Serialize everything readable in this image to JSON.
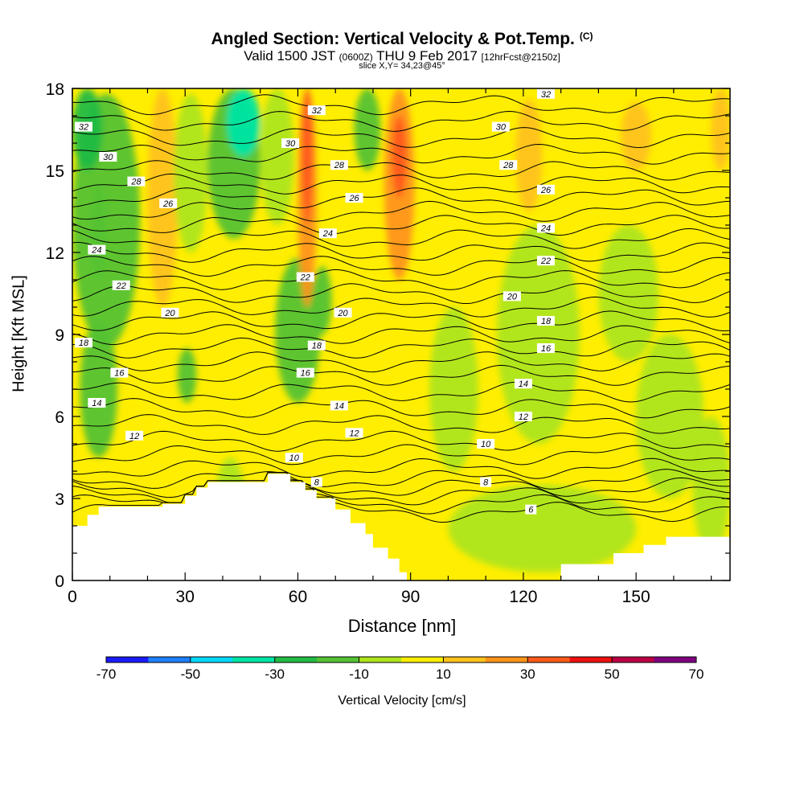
{
  "header": {
    "title": "Angled Section: Vertical Velocity & Pot.Temp.",
    "title_note": "(C)",
    "valid_a": "Valid 1500 JST",
    "valid_small": "(0600Z)",
    "valid_b": "THU 9 Feb 2017",
    "fcst": "[12hrFcst@2150z]",
    "slice": "slice X,Y= 34,23@45°"
  },
  "chart_data": {
    "type": "heatmap",
    "xlabel": "Distance [nm]",
    "ylabel": "Height [Kft MSL]",
    "xlim": [
      0,
      175
    ],
    "ylim": [
      0,
      18
    ],
    "x_ticks": [
      0,
      30,
      60,
      90,
      120,
      150
    ],
    "y_ticks": [
      0,
      3,
      6,
      9,
      12,
      15,
      18
    ],
    "colorbar": {
      "label": "Vertical Velocity [cm/s]",
      "ticks": [
        -70,
        -50,
        -30,
        -10,
        10,
        30,
        50,
        70
      ],
      "colors": [
        "#1a1aff",
        "#1e7fff",
        "#00d9ff",
        "#00e5a5",
        "#22bb44",
        "#55c233",
        "#aee51a",
        "#ffee00",
        "#ffc21a",
        "#ff941a",
        "#ff5a1a",
        "#ee1010",
        "#bb0044",
        "#800080"
      ]
    },
    "background_bin": 7,
    "velocity_cells": [
      {
        "x": [
          0,
          18
        ],
        "y": [
          8.5,
          17.8
        ],
        "bin": 5
      },
      {
        "x": [
          0,
          8
        ],
        "y": [
          15,
          18
        ],
        "bin": 4
      },
      {
        "x": [
          2,
          12
        ],
        "y": [
          4.5,
          9.5
        ],
        "bin": 5
      },
      {
        "x": [
          5,
          9
        ],
        "y": [
          11,
          14.5
        ],
        "bin": 5
      },
      {
        "x": [
          20,
          28
        ],
        "y": [
          10,
          18
        ],
        "bin": 8
      },
      {
        "x": [
          27,
          36
        ],
        "y": [
          12,
          17.8
        ],
        "bin": 6
      },
      {
        "x": [
          36,
          50
        ],
        "y": [
          12.5,
          18
        ],
        "bin": 5
      },
      {
        "x": [
          41,
          50
        ],
        "y": [
          15.5,
          18
        ],
        "bin": 3
      },
      {
        "x": [
          38,
          46
        ],
        "y": [
          1.2,
          4.5
        ],
        "bin": 6
      },
      {
        "x": [
          28,
          33
        ],
        "y": [
          6.5,
          8.5
        ],
        "bin": 5
      },
      {
        "x": [
          50,
          59
        ],
        "y": [
          13,
          18
        ],
        "bin": 6
      },
      {
        "x": [
          54,
          66
        ],
        "y": [
          6.5,
          11.8
        ],
        "bin": 5
      },
      {
        "x": [
          60,
          65
        ],
        "y": [
          10,
          18
        ],
        "bin": 9
      },
      {
        "x": [
          61,
          64
        ],
        "y": [
          13,
          18
        ],
        "bin": 10
      },
      {
        "x": [
          64,
          69
        ],
        "y": [
          9,
          11.5
        ],
        "bin": 5
      },
      {
        "x": [
          75,
          82
        ],
        "y": [
          15,
          18
        ],
        "bin": 5
      },
      {
        "x": [
          83,
          91
        ],
        "y": [
          11,
          18
        ],
        "bin": 9
      },
      {
        "x": [
          85,
          89
        ],
        "y": [
          14,
          17
        ],
        "bin": 10
      },
      {
        "x": [
          95,
          108
        ],
        "y": [
          4,
          10
        ],
        "bin": 6
      },
      {
        "x": [
          113,
          135
        ],
        "y": [
          5,
          13
        ],
        "bin": 6
      },
      {
        "x": [
          118,
          125
        ],
        "y": [
          13.5,
          17.6
        ],
        "bin": 8
      },
      {
        "x": [
          140,
          156
        ],
        "y": [
          8,
          13
        ],
        "bin": 6
      },
      {
        "x": [
          150,
          168
        ],
        "y": [
          3,
          9
        ],
        "bin": 6
      },
      {
        "x": [
          165,
          175
        ],
        "y": [
          1,
          6
        ],
        "bin": 6
      },
      {
        "x": [
          170,
          175
        ],
        "y": [
          15,
          18
        ],
        "bin": 8
      },
      {
        "x": [
          146,
          154
        ],
        "y": [
          15,
          17.5
        ],
        "bin": 8
      },
      {
        "x": [
          100,
          150
        ],
        "y": [
          0.3,
          3.5
        ],
        "bin": 6
      }
    ],
    "terrain_profile": [
      [
        0,
        2.0
      ],
      [
        4,
        2.0
      ],
      [
        4,
        2.4
      ],
      [
        7,
        2.4
      ],
      [
        7,
        2.7
      ],
      [
        24,
        2.7
      ],
      [
        24,
        2.8
      ],
      [
        30,
        2.8
      ],
      [
        30,
        3.1
      ],
      [
        33,
        3.1
      ],
      [
        33,
        3.4
      ],
      [
        36,
        3.4
      ],
      [
        36,
        3.6
      ],
      [
        52,
        3.6
      ],
      [
        52,
        3.9
      ],
      [
        58,
        3.9
      ],
      [
        58,
        3.6
      ],
      [
        62,
        3.6
      ],
      [
        62,
        3.3
      ],
      [
        65,
        3.3
      ],
      [
        65,
        3.0
      ],
      [
        70,
        3.0
      ],
      [
        70,
        2.6
      ],
      [
        74,
        2.6
      ],
      [
        74,
        2.1
      ],
      [
        78,
        2.1
      ],
      [
        78,
        1.7
      ],
      [
        80,
        1.7
      ],
      [
        80,
        1.2
      ],
      [
        84,
        1.2
      ],
      [
        84,
        0.8
      ],
      [
        87,
        0.8
      ],
      [
        87,
        0.3
      ],
      [
        89,
        0.3
      ],
      [
        89,
        0.0
      ],
      [
        130,
        0.0
      ],
      [
        130,
        0.6
      ],
      [
        144,
        0.6
      ],
      [
        144,
        1.0
      ],
      [
        152,
        1.0
      ],
      [
        152,
        1.3
      ],
      [
        158,
        1.3
      ],
      [
        158,
        1.6
      ],
      [
        175,
        1.6
      ]
    ],
    "theta_lines": [
      {
        "level": 4,
        "h": 2.5
      },
      {
        "level": 5,
        "h": 2.8
      },
      {
        "level": 6,
        "h": 3.1
      },
      {
        "level": 7,
        "h": 3.4
      },
      {
        "level": 8,
        "h": 3.7
      },
      {
        "level": 9,
        "h": 4.1
      },
      {
        "level": 10,
        "h": 4.6
      },
      {
        "level": 11,
        "h": 5.1
      },
      {
        "level": 12,
        "h": 5.7
      },
      {
        "level": 13,
        "h": 6.3
      },
      {
        "level": 14,
        "h": 6.9
      },
      {
        "level": 15,
        "h": 7.5
      },
      {
        "level": 16,
        "h": 8.0
      },
      {
        "level": 17,
        "h": 8.5
      },
      {
        "level": 18,
        "h": 9.0
      },
      {
        "level": 19,
        "h": 9.5
      },
      {
        "level": 20,
        "h": 10.0
      },
      {
        "level": 21,
        "h": 10.5
      },
      {
        "level": 22,
        "h": 11.0
      },
      {
        "level": 23,
        "h": 11.5
      },
      {
        "level": 24,
        "h": 12.0
      },
      {
        "level": 25,
        "h": 12.5
      },
      {
        "level": 26,
        "h": 13.0
      },
      {
        "level": 27,
        "h": 13.5
      },
      {
        "level": 28,
        "h": 14.0
      },
      {
        "level": 29,
        "h": 14.5
      },
      {
        "level": 30,
        "h": 15.0
      },
      {
        "level": 31,
        "h": 15.6
      },
      {
        "level": 32,
        "h": 16.2
      },
      {
        "level": 33,
        "h": 16.8
      },
      {
        "level": 34,
        "h": 17.4
      }
    ],
    "contour_labels": [
      {
        "text": "32",
        "x": 3,
        "y": 16.6
      },
      {
        "text": "30",
        "x": 9.5,
        "y": 15.5
      },
      {
        "text": "28",
        "x": 17,
        "y": 14.6
      },
      {
        "text": "26",
        "x": 25.5,
        "y": 13.8
      },
      {
        "text": "24",
        "x": 6.5,
        "y": 12.1
      },
      {
        "text": "22",
        "x": 13,
        "y": 10.8
      },
      {
        "text": "20",
        "x": 26,
        "y": 9.8
      },
      {
        "text": "18",
        "x": 3,
        "y": 8.7
      },
      {
        "text": "16",
        "x": 12.5,
        "y": 7.6
      },
      {
        "text": "14",
        "x": 6.5,
        "y": 6.5
      },
      {
        "text": "12",
        "x": 16.5,
        "y": 5.3
      },
      {
        "text": "32",
        "x": 65,
        "y": 17.2
      },
      {
        "text": "30",
        "x": 58,
        "y": 16.0
      },
      {
        "text": "28",
        "x": 71,
        "y": 15.2
      },
      {
        "text": "26",
        "x": 75,
        "y": 14.0
      },
      {
        "text": "24",
        "x": 68,
        "y": 12.7
      },
      {
        "text": "22",
        "x": 62,
        "y": 11.1
      },
      {
        "text": "20",
        "x": 72,
        "y": 9.8
      },
      {
        "text": "18",
        "x": 65,
        "y": 8.6
      },
      {
        "text": "16",
        "x": 62,
        "y": 7.6
      },
      {
        "text": "14",
        "x": 71,
        "y": 6.4
      },
      {
        "text": "12",
        "x": 75,
        "y": 5.4
      },
      {
        "text": "10",
        "x": 59,
        "y": 4.5
      },
      {
        "text": "8",
        "x": 65,
        "y": 3.6
      },
      {
        "text": "32",
        "x": 126,
        "y": 17.8
      },
      {
        "text": "30",
        "x": 114,
        "y": 16.6
      },
      {
        "text": "28",
        "x": 116,
        "y": 15.2
      },
      {
        "text": "26",
        "x": 126,
        "y": 14.3
      },
      {
        "text": "24",
        "x": 126,
        "y": 12.9
      },
      {
        "text": "22",
        "x": 126,
        "y": 11.7
      },
      {
        "text": "20",
        "x": 117,
        "y": 10.4
      },
      {
        "text": "18",
        "x": 126,
        "y": 9.5
      },
      {
        "text": "16",
        "x": 126,
        "y": 8.5
      },
      {
        "text": "14",
        "x": 120,
        "y": 7.2
      },
      {
        "text": "12",
        "x": 120,
        "y": 6.0
      },
      {
        "text": "10",
        "x": 110,
        "y": 5.0
      },
      {
        "text": "8",
        "x": 110,
        "y": 3.6
      },
      {
        "text": "6",
        "x": 122,
        "y": 2.6
      }
    ]
  }
}
